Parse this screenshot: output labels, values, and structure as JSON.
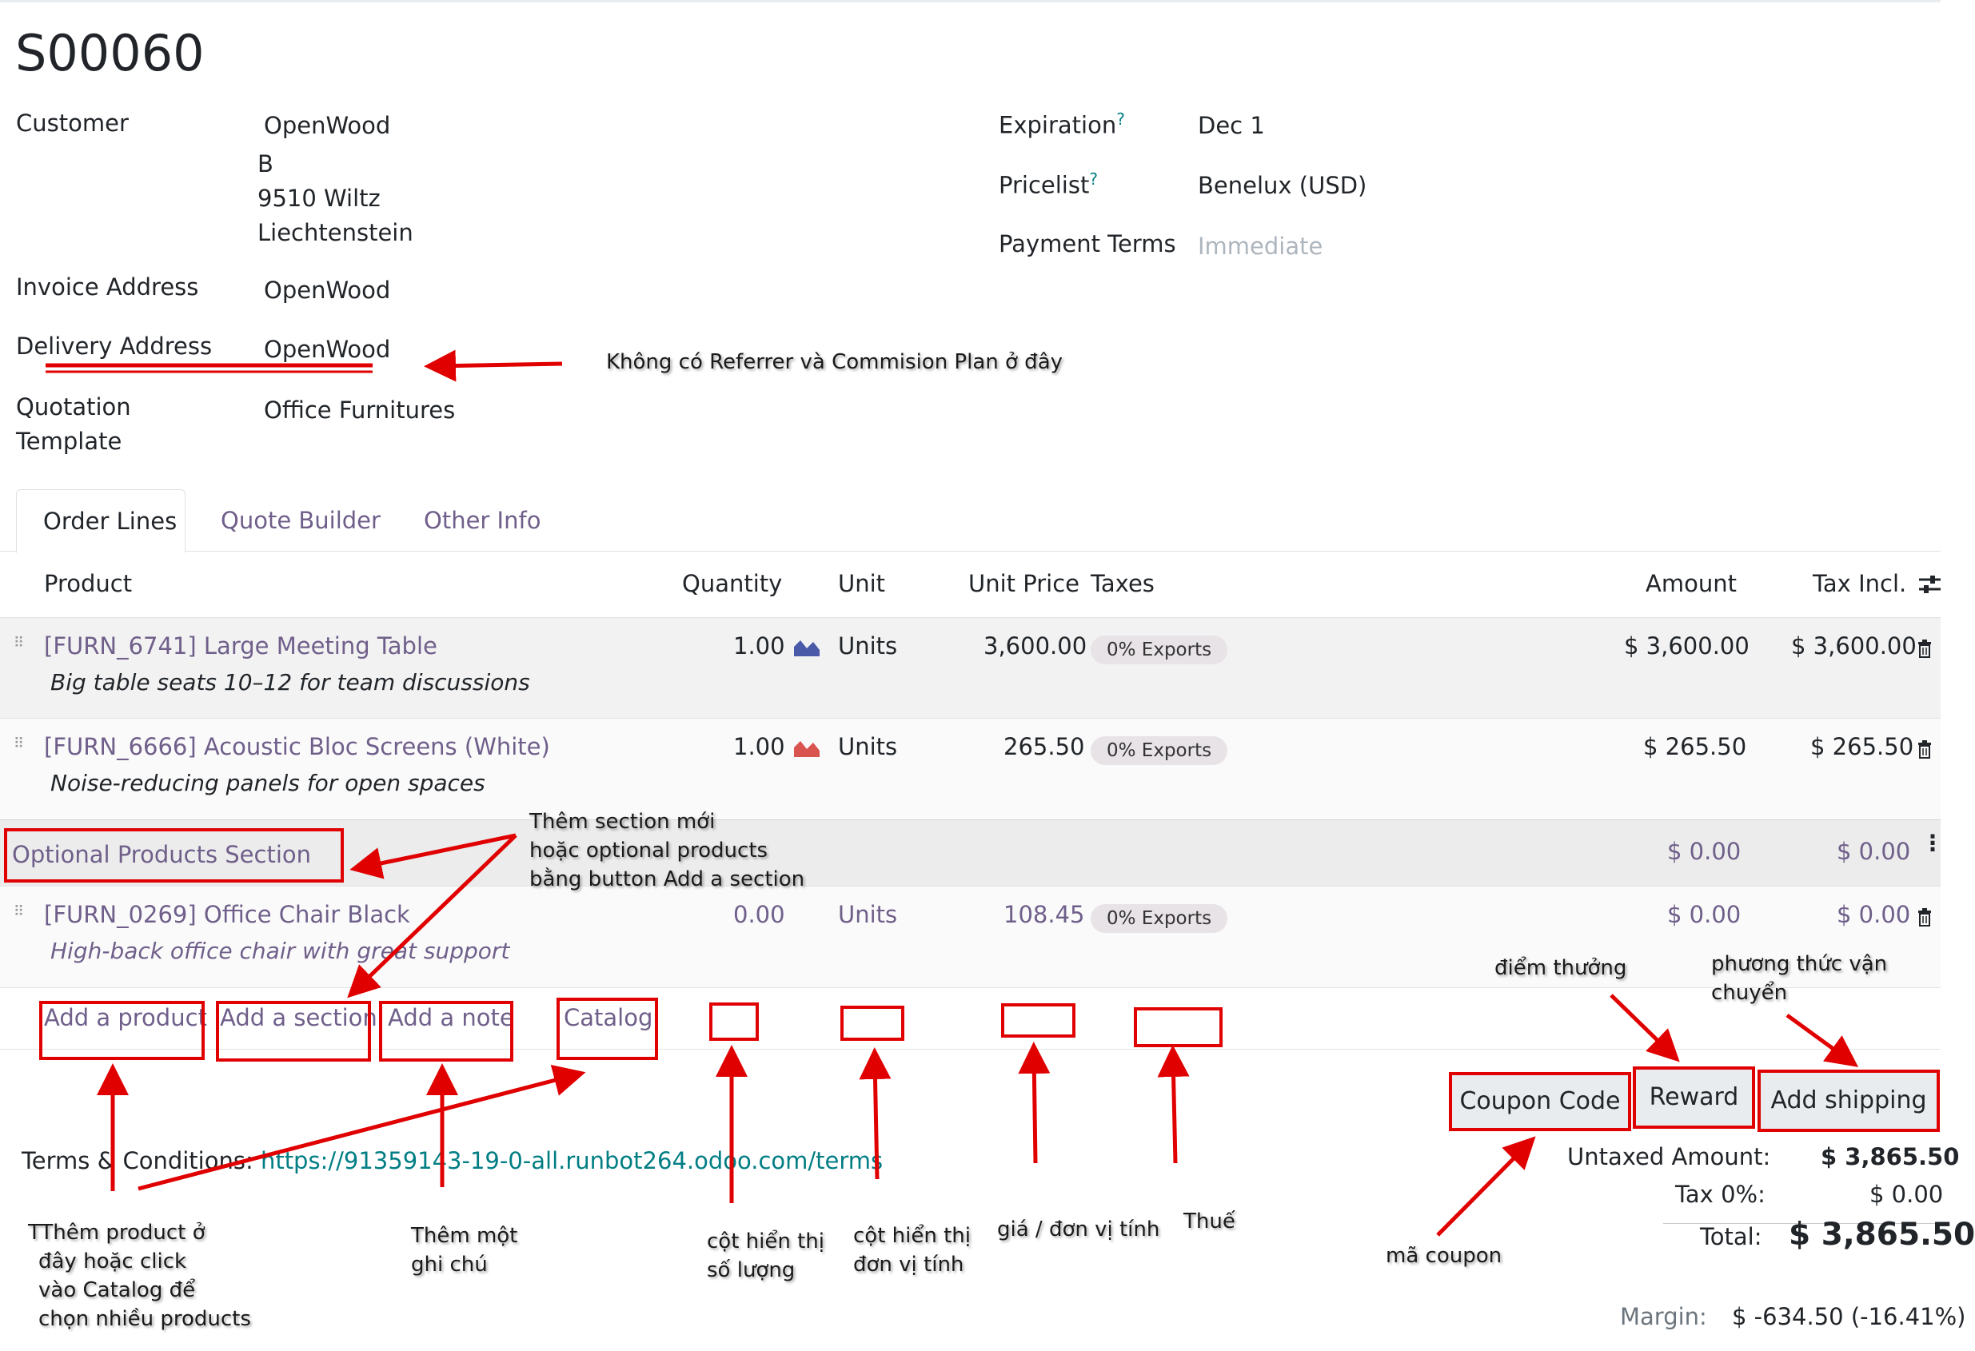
{
  "form": {
    "title": "S00060",
    "customer_label": "Customer",
    "customer_lines": [
      "OpenWood",
      "B",
      "9510 Wiltz",
      "Liechtenstein"
    ],
    "invoice_label": "Invoice Address",
    "invoice_value": "OpenWood",
    "delivery_label": "Delivery Address",
    "delivery_value": "OpenWood",
    "template_label_1": "Quotation",
    "template_label_2": "Template",
    "template_value": "Office Furnitures",
    "expiration_label": "Expiration",
    "expiration_value": "Dec 1",
    "pricelist_label": "Pricelist",
    "pricelist_value": "Benelux (USD)",
    "payment_terms_label": "Payment Terms",
    "payment_terms_placeholder": "Immediate",
    "help_mark": "?"
  },
  "tabs": [
    {
      "label": "Order Lines"
    },
    {
      "label": "Quote Builder"
    },
    {
      "label": "Other Info"
    }
  ],
  "table": {
    "headers": {
      "product": "Product",
      "quantity": "Quantity",
      "unit": "Unit",
      "unit_price": "Unit Price",
      "taxes": "Taxes",
      "amount": "Amount",
      "tax_incl": "Tax Incl."
    },
    "rows": [
      {
        "product": "[FURN_6741] Large Meeting Table",
        "description": "Big table seats 10–12 for team discussions",
        "quantity": "1.00",
        "unit": "Units",
        "unit_price": "3,600.00",
        "tax": "0% Exports",
        "amount": "$ 3,600.00",
        "tax_incl": "$ 3,600.00"
      },
      {
        "product": "[FURN_6666] Acoustic Bloc Screens (White)",
        "description": "Noise-reducing panels for open spaces",
        "quantity": "1.00",
        "unit": "Units",
        "unit_price": "265.50",
        "tax": "0% Exports",
        "amount": "$ 265.50",
        "tax_incl": "$ 265.50"
      }
    ],
    "section": {
      "label": "Optional Products Section",
      "amount": "$ 0.00",
      "tax_incl": "$ 0.00"
    },
    "optional_row": {
      "product": "[FURN_0269] Office Chair Black",
      "description": "High-back office chair with great support",
      "quantity": "0.00",
      "unit": "Units",
      "unit_price": "108.45",
      "tax": "0% Exports",
      "amount": "$ 0.00",
      "tax_incl": "$ 0.00"
    },
    "add_links": {
      "product": "Add a product",
      "section": "Add a section",
      "note": "Add a note",
      "catalog": "Catalog"
    }
  },
  "actions": {
    "coupon": "Coupon Code",
    "reward": "Reward",
    "shipping": "Add shipping"
  },
  "terms": {
    "label": "Terms & Conditions:",
    "url": "https://91359143-19-0-all.runbot264.odoo.com/terms"
  },
  "totals": {
    "untaxed_label": "Untaxed Amount:",
    "untaxed_value": "$ 3,865.50",
    "tax_label": "Tax 0%:",
    "tax_value": "$ 0.00",
    "total_label": "Total:",
    "total_value": "$ 3,865.50",
    "margin_label": "Margin:",
    "margin_value": "$ -634.50 (-16.41%)"
  },
  "annotations": {
    "no_referrer": "Không có Referrer và Commision Plan ở đây",
    "section_1": "Thêm section mới",
    "section_2": "hoặc optional products",
    "section_3": "bằng button Add a  section",
    "reward_note": "điểm thưởng",
    "shipping_1": "phương thức vận",
    "shipping_2": "chuyển",
    "add_product_1": "TThêm product  ở",
    "add_product_2": "đây hoặc click",
    "add_product_3": "vào Catalog để",
    "add_product_4": "chọn nhiều products",
    "note_1": "Thêm một",
    "note_2": "ghi chú",
    "qty_1": "cột hiển thị",
    "qty_2": "số lượng",
    "unit_1": "cột hiển thị",
    "unit_2": "đơn vị tính",
    "price": "giá / đơn vị tính",
    "tax": "Thuế",
    "coupon": "mã coupon"
  },
  "colors": {
    "link": "#6f5f8a",
    "annotation_red": "#e00000",
    "teal": "#017e84",
    "forecast_blue": "#4a5aa8",
    "forecast_red": "#d9534f"
  }
}
